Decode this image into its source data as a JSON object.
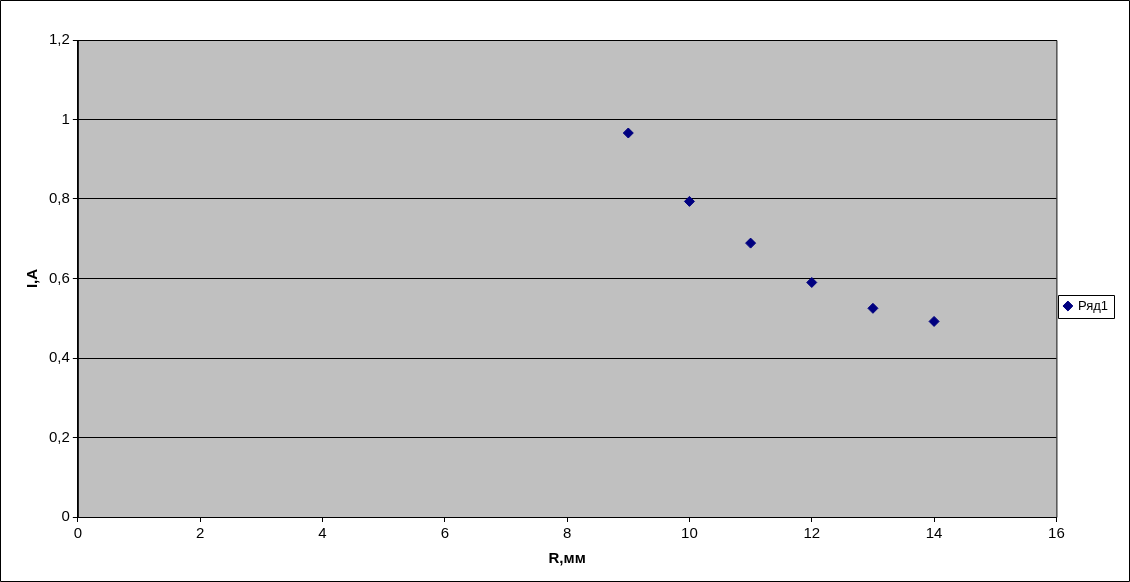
{
  "chart_data": {
    "type": "scatter",
    "xlabel": "R,мм",
    "ylabel": "I,A",
    "series": [
      {
        "name": "Ряд1",
        "color": "#000080",
        "x": [
          9,
          10,
          11,
          12,
          13,
          14
        ],
        "values": [
          0.966,
          0.794,
          0.689,
          0.59,
          0.525,
          0.492
        ]
      }
    ],
    "xlim": [
      0,
      16
    ],
    "xticks": [
      0,
      2,
      4,
      6,
      8,
      10,
      12,
      14,
      16
    ],
    "ylim": [
      0,
      1.2
    ],
    "yticks": [
      0,
      {
        "value": 0.2,
        "label": "0,2"
      },
      {
        "value": 0.4,
        "label": "0,4"
      },
      {
        "value": 0.6,
        "label": "0,6"
      },
      {
        "value": 0.8,
        "label": "0,8"
      },
      1,
      {
        "value": 1.2,
        "label": "1,2"
      }
    ],
    "grid": "y",
    "legend": "right",
    "marker": "diamond"
  }
}
